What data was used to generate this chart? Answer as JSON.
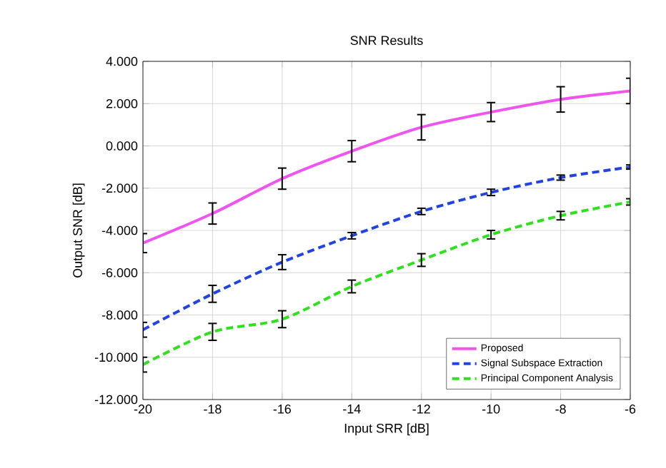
{
  "chart_data": {
    "type": "line",
    "title": "SNR Results",
    "xlabel": "Input SRR [dB]",
    "ylabel": "Output SNR [dB]",
    "x": [
      -20,
      -18,
      -16,
      -14,
      -12,
      -10,
      -8,
      -6
    ],
    "series": [
      {
        "name": "Proposed",
        "color": "#ee55ee",
        "line_style": "solid",
        "values": [
          -4.6,
          -3.2,
          -1.55,
          -0.25,
          0.88,
          1.6,
          2.2,
          2.6
        ],
        "errors": [
          0.45,
          0.5,
          0.5,
          0.5,
          0.6,
          0.45,
          0.6,
          0.6
        ]
      },
      {
        "name": "Signal Subspace Extraction",
        "color": "#2244dd",
        "line_style": "dashed",
        "values": [
          -8.7,
          -7.0,
          -5.5,
          -4.25,
          -3.1,
          -2.2,
          -1.5,
          -1.0
        ],
        "errors": [
          0.35,
          0.4,
          0.35,
          0.15,
          0.15,
          0.15,
          0.12,
          0.1
        ]
      },
      {
        "name": "Principal Component Analysis",
        "color": "#33dd22",
        "line_style": "dashed",
        "values": [
          -10.35,
          -8.8,
          -8.2,
          -6.65,
          -5.4,
          -4.2,
          -3.3,
          -2.65
        ],
        "errors": [
          0.35,
          0.4,
          0.4,
          0.3,
          0.3,
          0.2,
          0.2,
          0.15
        ]
      }
    ],
    "xlim": [
      -20,
      -6
    ],
    "xticks": [
      -20,
      -18,
      -16,
      -14,
      -12,
      -10,
      -8,
      -6
    ],
    "ylim": [
      -12,
      4
    ],
    "yticks": [
      {
        "value": -12,
        "label": "-12.000"
      },
      {
        "value": -10,
        "label": "-10.000"
      },
      {
        "value": -8,
        "label": "-8.000"
      },
      {
        "value": -6,
        "label": "-6.000"
      },
      {
        "value": -4,
        "label": "-4.000"
      },
      {
        "value": -2,
        "label": "-2.000"
      },
      {
        "value": 0,
        "label": "0.000"
      },
      {
        "value": 2,
        "label": "2.000"
      },
      {
        "value": 4,
        "label": "4.000"
      }
    ],
    "grid": true,
    "legend": "bottom right",
    "marker": "none"
  }
}
